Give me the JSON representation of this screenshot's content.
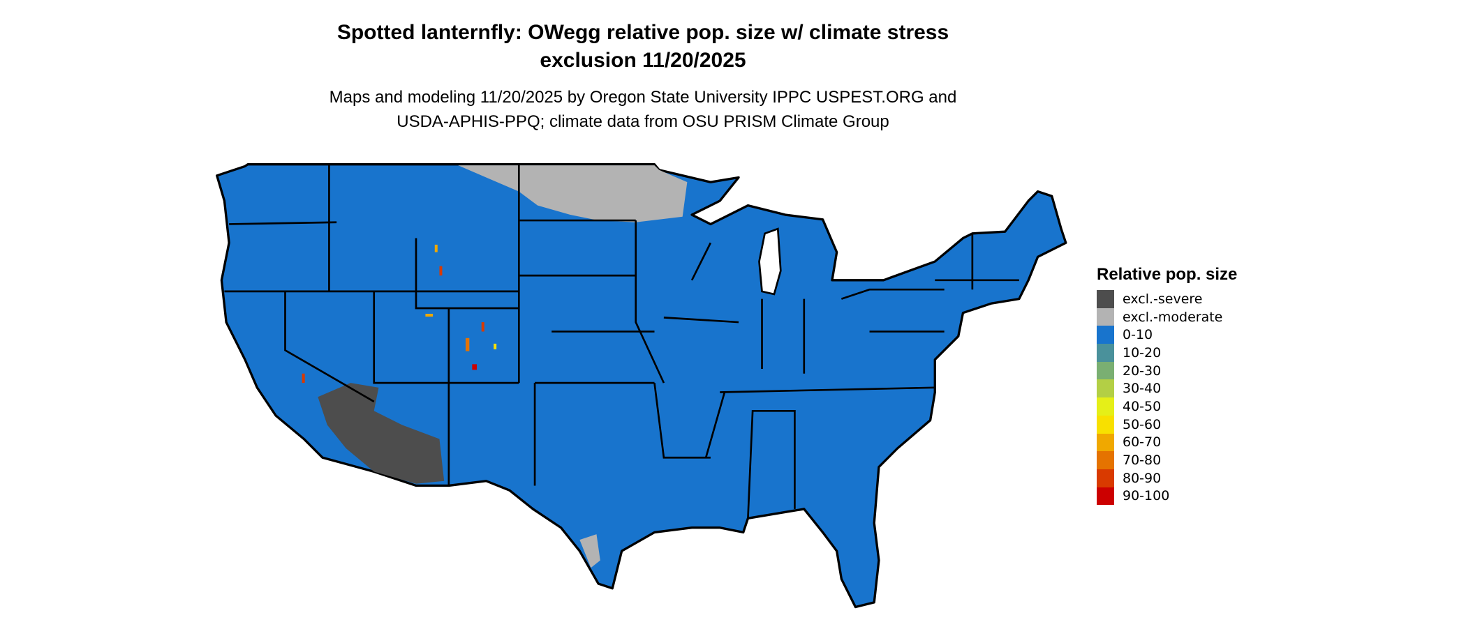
{
  "title_line1": "Spotted lanternfly: OWegg relative pop. size w/ climate stress",
  "title_line2": "exclusion 11/20/2025",
  "subtitle_line1": "Maps and modeling 11/20/2025 by Oregon State University IPPC USPEST.ORG and",
  "subtitle_line2": "USDA-APHIS-PPQ; climate data from OSU PRISM Climate Group",
  "legend": {
    "title": "Relative pop. size",
    "items": [
      {
        "label": "excl.-severe",
        "color": "#4d4d4d"
      },
      {
        "label": "excl.-moderate",
        "color": "#b3b3b3"
      },
      {
        "label": "0-10",
        "color": "#1874cd"
      },
      {
        "label": "10-20",
        "color": "#4a919b"
      },
      {
        "label": "20-30",
        "color": "#7aaf72"
      },
      {
        "label": "30-40",
        "color": "#b3cf45"
      },
      {
        "label": "40-50",
        "color": "#e5ef18"
      },
      {
        "label": "50-60",
        "color": "#f8e000"
      },
      {
        "label": "60-70",
        "color": "#f0a800"
      },
      {
        "label": "70-80",
        "color": "#e57300"
      },
      {
        "label": "80-90",
        "color": "#d93a00"
      },
      {
        "label": "90-100",
        "color": "#cc0000"
      }
    ]
  }
}
